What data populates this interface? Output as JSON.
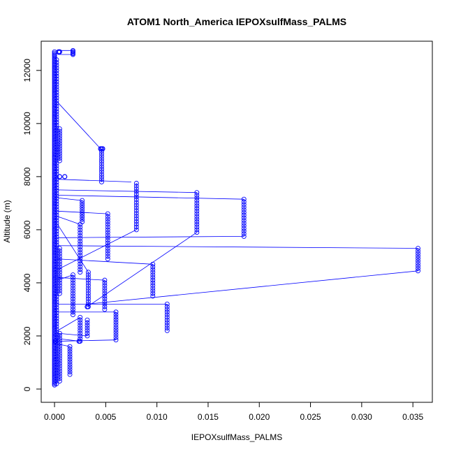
{
  "chart_data": {
    "type": "scatter",
    "title": "ATOM1 North_America IEPOXsulfMass_PALMS",
    "xlabel": "IEPOXsulfMass_PALMS",
    "ylabel": "Altitude (m)",
    "xlim": [
      -0.0013,
      0.0369
    ],
    "ylim": [
      -500,
      13100
    ],
    "x_ticks": [
      0.0,
      0.005,
      0.01,
      0.015,
      0.02,
      0.025,
      0.03,
      0.035
    ],
    "x_tick_labels": [
      "0.000",
      "0.005",
      "0.010",
      "0.015",
      "0.020",
      "0.025",
      "0.030",
      "0.035"
    ],
    "y_ticks": [
      0,
      2000,
      4000,
      6000,
      8000,
      10000,
      12000
    ],
    "y_tick_labels": [
      "0",
      "2000",
      "4000",
      "6000",
      "8000",
      "10000",
      "12000"
    ],
    "grid": false,
    "legend": "none",
    "series_color": "#0000ff",
    "marker": "open-circle",
    "connected": true,
    "columns": [
      {
        "x": 0.0,
        "y0": 150,
        "y1": 12700,
        "n": 260
      },
      {
        "x": 0.0002,
        "y0": 200,
        "y1": 12400,
        "n": 120
      },
      {
        "x": 0.0005,
        "y0": 300,
        "y1": 2100,
        "n": 20
      },
      {
        "x": 0.0005,
        "y0": 3600,
        "y1": 5300,
        "n": 18
      },
      {
        "x": 0.0005,
        "y0": 8600,
        "y1": 9800,
        "n": 14
      },
      {
        "x": 0.0015,
        "y0": 550,
        "y1": 1600,
        "n": 12
      },
      {
        "x": 0.0018,
        "y0": 2800,
        "y1": 4300,
        "n": 16
      },
      {
        "x": 0.0018,
        "y0": 12600,
        "y1": 12750,
        "n": 5
      },
      {
        "x": 0.0025,
        "y0": 1800,
        "y1": 2700,
        "n": 10
      },
      {
        "x": 0.0025,
        "y0": 4400,
        "y1": 6200,
        "n": 18
      },
      {
        "x": 0.0027,
        "y0": 6300,
        "y1": 7100,
        "n": 10
      },
      {
        "x": 0.0032,
        "y0": 2000,
        "y1": 2600,
        "n": 7
      },
      {
        "x": 0.0033,
        "y0": 3100,
        "y1": 4400,
        "n": 14
      },
      {
        "x": 0.0046,
        "y0": 7800,
        "y1": 9050,
        "n": 14
      },
      {
        "x": 0.0049,
        "y0": 3000,
        "y1": 4100,
        "n": 12
      },
      {
        "x": 0.0052,
        "y0": 4900,
        "y1": 6600,
        "n": 18
      },
      {
        "x": 0.006,
        "y0": 1850,
        "y1": 2900,
        "n": 12
      },
      {
        "x": 0.008,
        "y0": 6000,
        "y1": 7750,
        "n": 18
      },
      {
        "x": 0.0096,
        "y0": 3500,
        "y1": 4700,
        "n": 13
      },
      {
        "x": 0.011,
        "y0": 2200,
        "y1": 3200,
        "n": 11
      },
      {
        "x": 0.0139,
        "y0": 5900,
        "y1": 7400,
        "n": 16
      },
      {
        "x": 0.0185,
        "y0": 5750,
        "y1": 7150,
        "n": 15
      },
      {
        "x": 0.0355,
        "y0": 4450,
        "y1": 5300,
        "n": 10
      }
    ],
    "cluster_points": [
      {
        "x": 0.0004,
        "y": 12700
      },
      {
        "x": 0.0005,
        "y": 12700
      },
      {
        "x": 0.0045,
        "y": 9050
      },
      {
        "x": 0.0047,
        "y": 9050
      },
      {
        "x": 0.0005,
        "y": 8000
      },
      {
        "x": 0.001,
        "y": 8000
      },
      {
        "x": 0.0001,
        "y": 1800
      },
      {
        "x": 0.0032,
        "y": 3100
      },
      {
        "x": 0.0024,
        "y": 1800
      }
    ],
    "connections": [
      [
        0.0003,
        10800,
        0.0045,
        9050
      ],
      [
        0.0003,
        7900,
        0.0075,
        7800
      ],
      [
        0.0003,
        7500,
        0.0139,
        7400
      ],
      [
        0.0003,
        7300,
        0.0185,
        7150
      ],
      [
        0.0003,
        7200,
        0.0027,
        7100
      ],
      [
        0.0003,
        6700,
        0.0052,
        6600
      ],
      [
        0.0003,
        6500,
        0.0025,
        6200
      ],
      [
        0.0003,
        6200,
        0.0033,
        4400
      ],
      [
        0.0003,
        5700,
        0.0185,
        5750
      ],
      [
        0.0003,
        5400,
        0.0355,
        5300
      ],
      [
        0.0003,
        4900,
        0.0096,
        4700
      ],
      [
        0.0003,
        4500,
        0.008,
        6000
      ],
      [
        0.0003,
        4200,
        0.0049,
        4100
      ],
      [
        0.0003,
        4100,
        0.0018,
        4300
      ],
      [
        0.0003,
        3200,
        0.011,
        3200
      ],
      [
        0.0032,
        3100,
        0.0139,
        5900
      ],
      [
        0.0032,
        3200,
        0.0355,
        4450
      ],
      [
        0.0003,
        2900,
        0.006,
        2900
      ],
      [
        0.0003,
        2200,
        0.0025,
        2700
      ],
      [
        0.0003,
        2100,
        0.0032,
        2000
      ],
      [
        0.0003,
        1800,
        0.006,
        1850
      ],
      [
        0.0003,
        1700,
        0.0015,
        1600
      ],
      [
        0.0003,
        1900,
        0.0025,
        1800
      ],
      [
        0.0003,
        12600,
        0.0018,
        12600
      ],
      [
        0.0003,
        12750,
        0.0018,
        12750
      ]
    ]
  }
}
